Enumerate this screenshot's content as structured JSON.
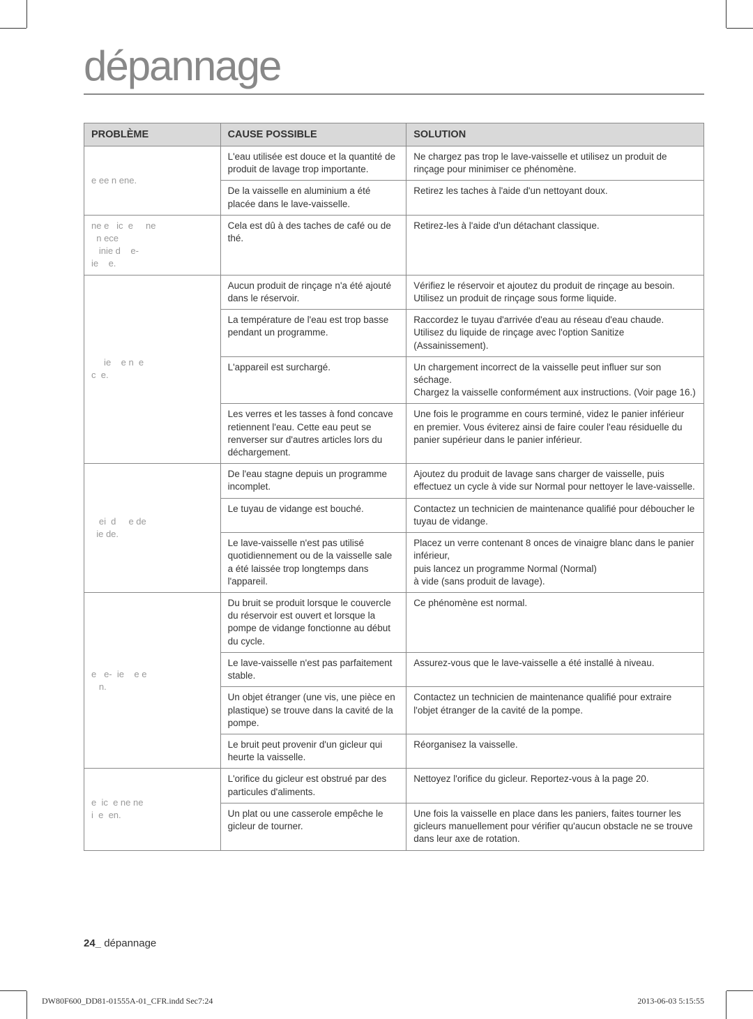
{
  "title": "dépannage",
  "headers": {
    "probleme": "PROBLÈME",
    "cause": "CAUSE POSSIBLE",
    "solution": "SOLUTION"
  },
  "sections": [
    {
      "problem": "e ee n ene.",
      "rows": [
        {
          "cause": "L'eau utilisée est douce et la quantité de produit de lavage trop importante.",
          "solution": "Ne chargez pas trop le lave-vaisselle et utilisez un produit de rinçage pour minimiser ce phénomène."
        },
        {
          "cause": "De la vaisselle en aluminium a été placée dans le lave-vaisselle.",
          "solution": "Retirez les taches à l'aide d'un nettoyant doux."
        }
      ]
    },
    {
      "problem": "ne e   ic  e     ne\n  n ece\n   inie d    e-\nie    e.",
      "rows": [
        {
          "cause": "Cela est dû à des taches de café ou de thé.",
          "solution": "Retirez-les à l'aide d'un détachant classique."
        }
      ]
    },
    {
      "problem": "     ie    e n  e\nc  e.",
      "rows": [
        {
          "cause": "Aucun produit de rinçage n'a été ajouté dans le réservoir.",
          "solution": "Vérifiez le réservoir et ajoutez du produit de rinçage au besoin.\nUtilisez un produit de rinçage sous forme liquide."
        },
        {
          "cause": "La température de l'eau est trop basse pendant un programme.",
          "solution": "Raccordez le tuyau d'arrivée d'eau au réseau d'eau chaude.\nUtilisez du liquide de rinçage avec l'option Sanitize (Assainissement)."
        },
        {
          "cause": "L'appareil est surchargé.",
          "solution": "Un chargement incorrect de la vaisselle peut influer sur son séchage.\nChargez la vaisselle conformément aux instructions. (Voir page 16.)"
        },
        {
          "cause": "Les verres et les tasses à fond concave retiennent l'eau. Cette eau peut se renverser sur d'autres articles lors du déchargement.",
          "solution": "Une fois le programme en cours terminé, videz le panier inférieur en premier. Vous éviterez ainsi de faire couler l'eau résiduelle du panier supérieur dans le panier inférieur."
        }
      ]
    },
    {
      "problem": "   ei  d     e de\n  ie de.",
      "rows": [
        {
          "cause": "De l'eau stagne depuis un programme incomplet.",
          "solution": "Ajoutez du produit de lavage sans charger de vaisselle, puis effectuez un cycle à vide sur Normal pour nettoyer le lave-vaisselle."
        },
        {
          "cause": "Le tuyau de vidange est bouché.",
          "solution": "Contactez un technicien de maintenance qualifié pour déboucher le tuyau de vidange."
        },
        {
          "cause": "Le lave-vaisselle n'est pas utilisé quotidiennement ou de la vaisselle sale a été laissée trop longtemps dans l'appareil.",
          "solution": "Placez un verre contenant 8 onces de vinaigre blanc dans le panier inférieur,\npuis lancez un programme Normal (Normal)\nà vide (sans produit de lavage)."
        }
      ]
    },
    {
      "problem": "e   e-  ie    e e\n   n.",
      "rows": [
        {
          "cause": "Du bruit se produit lorsque le couvercle du réservoir est ouvert et lorsque la pompe de vidange fonctionne au début du cycle.",
          "solution": "Ce phénomène est normal."
        },
        {
          "cause": "Le lave-vaisselle n'est pas parfaitement stable.",
          "solution": "Assurez-vous que le lave-vaisselle a été installé à niveau."
        },
        {
          "cause": "Un objet étranger (une vis, une pièce en plastique) se trouve dans la cavité de la pompe.",
          "solution": "Contactez un technicien de maintenance qualifié pour extraire l'objet étranger de la cavité de la pompe."
        },
        {
          "cause": "Le bruit peut provenir d'un gicleur qui heurte la vaisselle.",
          "solution": "Réorganisez la vaisselle."
        }
      ]
    },
    {
      "problem": "e  ic  e ne ne\ni  e  en.",
      "rows": [
        {
          "cause": "L'orifice du gicleur est obstrué par des particules d'aliments.",
          "solution": "Nettoyez l'orifice du gicleur. Reportez-vous à la page 20."
        },
        {
          "cause": "Un plat ou une casserole empêche le gicleur de tourner.",
          "solution": "Une fois la vaisselle en place dans les paniers, faites tourner les gicleurs manuellement pour vérifier qu'aucun obstacle ne se trouve dans leur axe de rotation."
        }
      ]
    }
  ],
  "footer": {
    "page_num": "24_",
    "page_label": " dépannage",
    "file": "DW80F600_DD81-01555A-01_CFR.indd   Sec7:24",
    "time": "2013-06-03    5:15:55"
  }
}
